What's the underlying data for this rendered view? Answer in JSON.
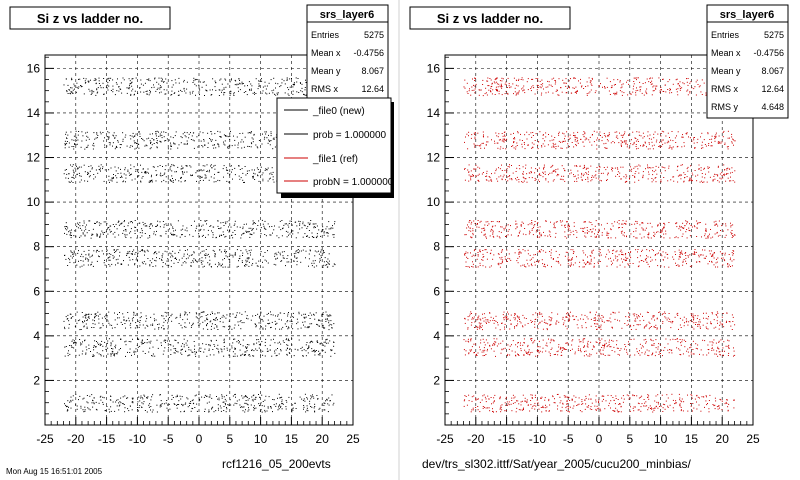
{
  "chart_data": [
    {
      "type": "scatter",
      "title": "Si z vs ladder no.",
      "color": "#000000",
      "xlim": [
        -25,
        25
      ],
      "ylim": [
        0,
        16.6
      ],
      "x_ticks": [
        "-25",
        "-20",
        "-15",
        "-10",
        "-5",
        "0",
        "5",
        "10",
        "15",
        "20",
        "25"
      ],
      "y_ticks": [
        "2",
        "4",
        "6",
        "8",
        "10",
        "12",
        "14",
        "16"
      ],
      "grid": true,
      "bands_y": [
        1,
        3.5,
        4.7,
        7.5,
        8.8,
        11.3,
        12.8,
        15.2
      ],
      "x_range": [
        -22,
        22
      ],
      "stats": {
        "name": "srs_layer6",
        "rows": [
          {
            "label": "Entries",
            "value": "5275"
          },
          {
            "label": "Mean x",
            "value": "-0.4756"
          },
          {
            "label": "Mean y",
            "value": "8.067"
          },
          {
            "label": "RMS x",
            "value": "12.64"
          }
        ]
      },
      "legend": [
        {
          "label": "_file0 (new)",
          "color": "#000000"
        },
        {
          "label": "prob = 1.000000",
          "color": "#000000"
        },
        {
          "label": "_file1 (ref)",
          "color": "#cc0000"
        },
        {
          "label": "probN = 1.000000",
          "color": "#cc0000"
        }
      ],
      "footer": "rcf1216_05_200evts"
    },
    {
      "type": "scatter",
      "title": "Si z vs ladder no.",
      "color": "#cc0000",
      "xlim": [
        -25,
        25
      ],
      "ylim": [
        0,
        16.6
      ],
      "x_ticks": [
        "-25",
        "-20",
        "-15",
        "-10",
        "-5",
        "0",
        "5",
        "10",
        "15",
        "20",
        "25"
      ],
      "y_ticks": [
        "2",
        "4",
        "6",
        "8",
        "10",
        "12",
        "14",
        "16"
      ],
      "grid": true,
      "bands_y": [
        1,
        3.5,
        4.7,
        7.5,
        8.8,
        11.3,
        12.8,
        15.2
      ],
      "x_range": [
        -22,
        22
      ],
      "stats": {
        "name": "srs_layer6",
        "rows": [
          {
            "label": "Entries",
            "value": "5275"
          },
          {
            "label": "Mean x",
            "value": "-0.4756"
          },
          {
            "label": "Mean y",
            "value": "8.067"
          },
          {
            "label": "RMS x",
            "value": "12.64"
          },
          {
            "label": "RMS y",
            "value": "4.648"
          }
        ]
      },
      "footer": "dev/trs_sl302.ittf/Sat/year_2005/cucu200_minbias/"
    }
  ],
  "corner_text": "Mon Aug 15 16:51:01 2005"
}
